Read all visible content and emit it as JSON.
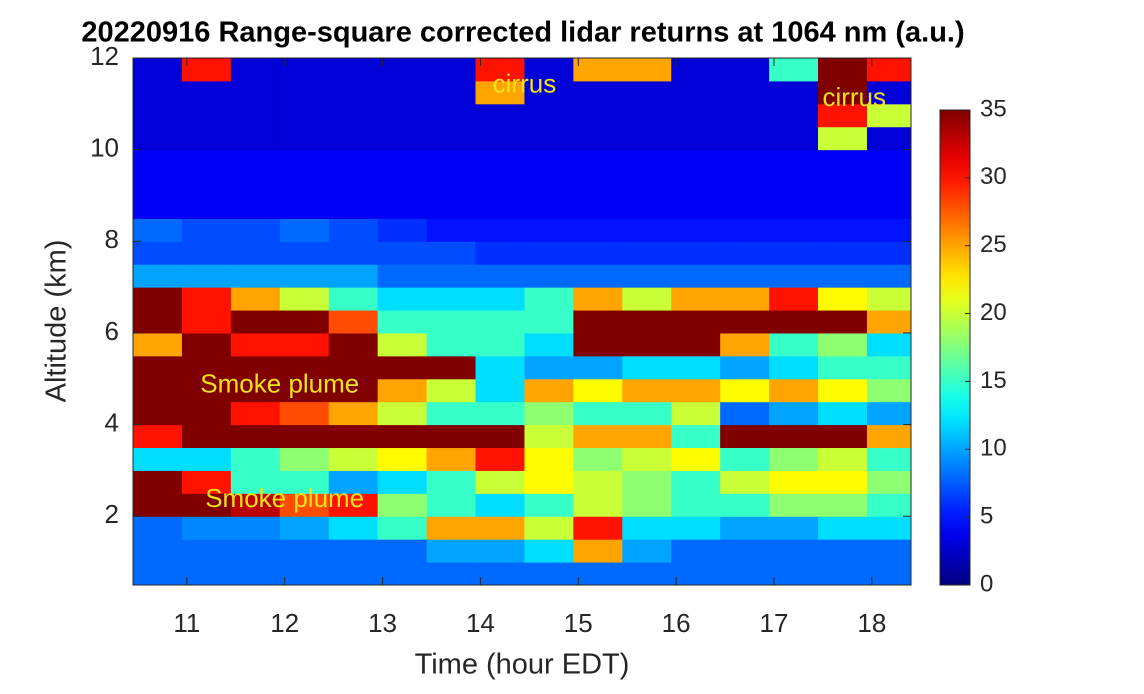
{
  "chart_data": {
    "type": "heatmap",
    "title": "20220916  Range-square corrected lidar returns at 1064 nm (a.u.)",
    "xlabel": "Time (hour EDT)",
    "ylabel": "Altitude (km)",
    "colormap": "jet",
    "x": [
      10.45,
      10.95,
      11.45,
      11.95,
      12.45,
      12.95,
      13.45,
      13.95,
      14.45,
      14.95,
      15.45,
      15.95,
      16.45,
      16.95,
      17.45,
      17.95,
      18.4
    ],
    "y": [
      0.5,
      1,
      1.5,
      2,
      2.5,
      3,
      3.5,
      4,
      4.5,
      5,
      5.5,
      6,
      6.5,
      7,
      7.5,
      8,
      8.5,
      9,
      9.5,
      10,
      10.5,
      11,
      11.5,
      12
    ],
    "values": [
      [
        8,
        8,
        8,
        8,
        8,
        8,
        8,
        8,
        8,
        8,
        8,
        8,
        8,
        8,
        8,
        8
      ],
      [
        8,
        8,
        8,
        8,
        8,
        8,
        10,
        10,
        12,
        25,
        10,
        8,
        8,
        8,
        8,
        8
      ],
      [
        8,
        9,
        9,
        10,
        12,
        15,
        25,
        25,
        20,
        30,
        12,
        12,
        10,
        10,
        12,
        12
      ],
      [
        35,
        35,
        33,
        28,
        30,
        18,
        15,
        12,
        15,
        20,
        18,
        15,
        15,
        18,
        18,
        15
      ],
      [
        35,
        30,
        15,
        15,
        10,
        12,
        15,
        20,
        22,
        20,
        18,
        15,
        20,
        22,
        22,
        18
      ],
      [
        12,
        12,
        15,
        18,
        20,
        22,
        25,
        30,
        22,
        18,
        20,
        22,
        15,
        18,
        20,
        15
      ],
      [
        30,
        35,
        35,
        35,
        35,
        35,
        35,
        35,
        20,
        25,
        25,
        15,
        35,
        35,
        35,
        25
      ],
      [
        35,
        35,
        30,
        28,
        25,
        20,
        15,
        15,
        18,
        15,
        15,
        20,
        8,
        10,
        12,
        10
      ],
      [
        35,
        35,
        35,
        35,
        35,
        25,
        20,
        12,
        25,
        22,
        25,
        25,
        22,
        25,
        22,
        18
      ],
      [
        35,
        35,
        35,
        35,
        35,
        35,
        35,
        12,
        10,
        10,
        12,
        12,
        10,
        12,
        15,
        15
      ],
      [
        25,
        35,
        30,
        30,
        35,
        20,
        15,
        15,
        12,
        35,
        35,
        35,
        25,
        15,
        18,
        12
      ],
      [
        35,
        30,
        35,
        35,
        28,
        15,
        15,
        15,
        15,
        35,
        35,
        35,
        35,
        35,
        35,
        25
      ],
      [
        35,
        30,
        25,
        20,
        15,
        12,
        12,
        12,
        15,
        25,
        20,
        25,
        25,
        30,
        22,
        20
      ],
      [
        10,
        10,
        10,
        10,
        10,
        8,
        8,
        8,
        8,
        8,
        8,
        8,
        8,
        8,
        8,
        8
      ],
      [
        7,
        7,
        7,
        7,
        7,
        7,
        7,
        6,
        6,
        6,
        6,
        6,
        6,
        6,
        6,
        6
      ],
      [
        8,
        7,
        7,
        8,
        7,
        6,
        5,
        5,
        5,
        5,
        5,
        5,
        5,
        5,
        5,
        5
      ],
      [
        4,
        4,
        4,
        4,
        4,
        4,
        4,
        4,
        4,
        4,
        4,
        4,
        4,
        4,
        4,
        4
      ],
      [
        4,
        4,
        4,
        4,
        4,
        4,
        4,
        4,
        4,
        4,
        4,
        4,
        4,
        4,
        4,
        4
      ],
      [
        4,
        4,
        4,
        4,
        4,
        4,
        4,
        4,
        4,
        4,
        4,
        4,
        4,
        4,
        4,
        4
      ],
      [
        3,
        3,
        3,
        3,
        3,
        3,
        3,
        3,
        3,
        3,
        3,
        3,
        3,
        3,
        20,
        3
      ],
      [
        3,
        3,
        3,
        3,
        3,
        3,
        3,
        3,
        3,
        3,
        3,
        3,
        3,
        3,
        30,
        20
      ],
      [
        3,
        3,
        3,
        3,
        3,
        3,
        3,
        25,
        3,
        3,
        3,
        3,
        3,
        3,
        35,
        3
      ],
      [
        3,
        30,
        3,
        3,
        3,
        3,
        3,
        30,
        3,
        25,
        25,
        3,
        3,
        15,
        35,
        30
      ]
    ],
    "xlim": [
      10.45,
      18.4
    ],
    "ylim": [
      0.5,
      12
    ],
    "xticks": [
      11,
      12,
      13,
      14,
      15,
      16,
      17,
      18
    ],
    "yticks": [
      2,
      4,
      6,
      8,
      10,
      12
    ],
    "clim": [
      0,
      35
    ],
    "cticks": [
      0,
      5,
      10,
      15,
      20,
      25,
      30,
      35
    ],
    "annotations": [
      {
        "text": "cirrus",
        "x": 14.45,
        "y": 11.4
      },
      {
        "text": "cirrus",
        "x": 17.82,
        "y": 11.1
      },
      {
        "text": "Smoke plume",
        "x": 11.95,
        "y": 4.85
      },
      {
        "text": "Smoke plume",
        "x": 12.0,
        "y": 2.35
      }
    ]
  }
}
